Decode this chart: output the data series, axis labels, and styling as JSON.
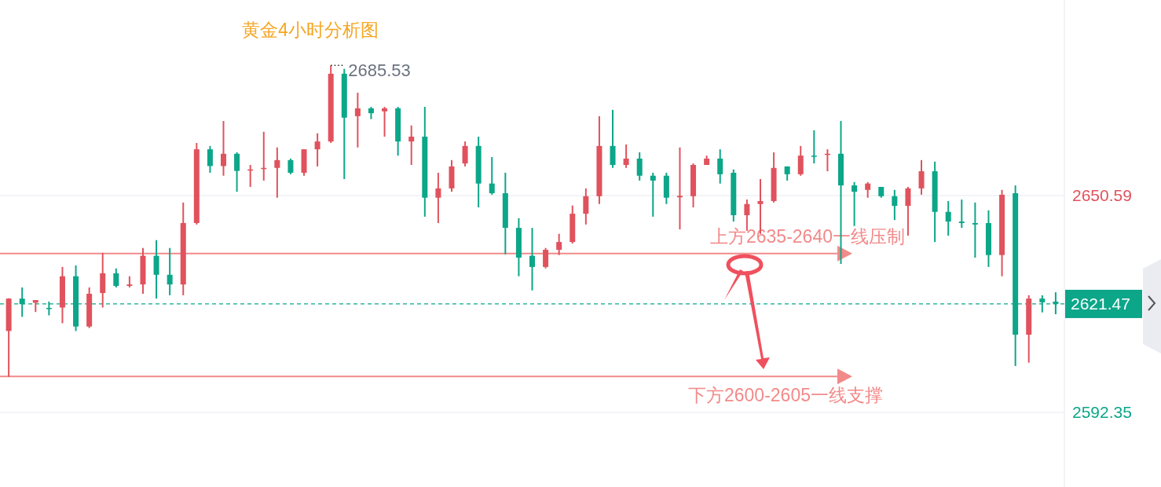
{
  "chart_data": {
    "type": "candlestick",
    "title": "黄金4小时分析图",
    "categories": [
      null,
      null,
      null,
      null,
      null,
      null,
      null,
      null,
      null,
      null,
      null,
      null,
      null,
      null,
      null,
      null,
      null,
      null,
      null,
      null,
      null,
      null,
      null,
      null,
      null,
      null,
      null,
      null,
      null,
      null,
      null,
      null,
      null,
      null,
      null,
      null,
      null,
      null,
      null,
      null,
      null,
      null,
      null,
      null,
      null,
      null,
      null,
      null,
      null,
      null,
      null,
      null,
      null,
      null,
      null,
      null,
      null,
      null,
      null,
      null,
      null,
      null,
      null,
      null,
      null,
      null,
      null,
      null,
      null,
      null,
      null,
      null,
      null,
      null,
      null,
      null,
      null,
      null,
      null
    ],
    "ohlc": [
      [
        2614.2,
        2623.0,
        2601.9,
        2622.9
      ],
      [
        2622.9,
        2625.9,
        2618.0,
        2621.4
      ],
      [
        2621.8,
        2622.5,
        2619.3,
        2622.5
      ],
      [
        2620.4,
        2622.1,
        2618.4,
        2620.1
      ],
      [
        2620.5,
        2631.4,
        2616.3,
        2628.9
      ],
      [
        2628.9,
        2631.8,
        2614.2,
        2615.4
      ],
      [
        2615.4,
        2625.9,
        2615.0,
        2624.2
      ],
      [
        2624.4,
        2635.2,
        2620.5,
        2629.7
      ],
      [
        2629.7,
        2631.0,
        2625.9,
        2626.3
      ],
      [
        2626.3,
        2628.9,
        2625.9,
        2626.7
      ],
      [
        2626.7,
        2636.5,
        2624.2,
        2634.4
      ],
      [
        2634.4,
        2638.6,
        2622.9,
        2629.3
      ],
      [
        2629.3,
        2636.5,
        2623.8,
        2626.7
      ],
      [
        2626.7,
        2648.7,
        2623.8,
        2643.2
      ],
      [
        2643.2,
        2664.7,
        2642.8,
        2663.0
      ],
      [
        2663.0,
        2663.9,
        2656.7,
        2658.5
      ],
      [
        2658.5,
        2670.6,
        2655.9,
        2661.8
      ],
      [
        2661.8,
        2662.2,
        2651.6,
        2657.2
      ],
      [
        2657.3,
        2658.8,
        2652.9,
        2657.6
      ],
      [
        2657.7,
        2667.7,
        2654.6,
        2658.0
      ],
      [
        2658.0,
        2663.5,
        2650.0,
        2660.1
      ],
      [
        2660.1,
        2660.5,
        2656.3,
        2656.7
      ],
      [
        2656.7,
        2663.0,
        2655.9,
        2663.0
      ],
      [
        2663.0,
        2667.3,
        2658.4,
        2665.1
      ],
      [
        2665.1,
        2685.53,
        2664.7,
        2683.3
      ],
      [
        2683.3,
        2684.6,
        2655.0,
        2671.5
      ],
      [
        2671.9,
        2678.2,
        2663.5,
        2674.0
      ],
      [
        2674.0,
        2674.4,
        2671.1,
        2672.7
      ],
      [
        2673.2,
        2674.4,
        2666.4,
        2674.0
      ],
      [
        2674.0,
        2674.4,
        2661.3,
        2665.1
      ],
      [
        2665.1,
        2669.4,
        2658.8,
        2666.4
      ],
      [
        2666.4,
        2674.4,
        2644.9,
        2650.0
      ],
      [
        2650.0,
        2656.7,
        2643.2,
        2652.5
      ],
      [
        2652.5,
        2660.1,
        2651.6,
        2658.4
      ],
      [
        2659.2,
        2665.1,
        2658.4,
        2663.9
      ],
      [
        2663.9,
        2666.4,
        2647.4,
        2653.8
      ],
      [
        2653.8,
        2660.9,
        2650.8,
        2651.2
      ],
      [
        2651.2,
        2656.7,
        2634.8,
        2641.9
      ],
      [
        2641.9,
        2644.5,
        2628.9,
        2633.9
      ],
      [
        2634.4,
        2641.9,
        2625.1,
        2631.4
      ],
      [
        2631.4,
        2636.5,
        2631.0,
        2636.0
      ],
      [
        2636.0,
        2640.3,
        2634.6,
        2638.1
      ],
      [
        2638.1,
        2647.9,
        2637.7,
        2645.7
      ],
      [
        2645.7,
        2652.5,
        2642.8,
        2650.4
      ],
      [
        2650.4,
        2671.9,
        2648.3,
        2663.9
      ],
      [
        2663.9,
        2673.6,
        2658.0,
        2658.8
      ],
      [
        2658.8,
        2664.3,
        2658.0,
        2660.5
      ],
      [
        2660.5,
        2662.2,
        2654.6,
        2655.9
      ],
      [
        2655.9,
        2656.7,
        2644.9,
        2654.6
      ],
      [
        2655.9,
        2656.7,
        2648.3,
        2650.0
      ],
      [
        2650.1,
        2663.5,
        2641.5,
        2650.5
      ],
      [
        2650.4,
        2659.2,
        2647.4,
        2658.8
      ],
      [
        2658.8,
        2661.3,
        2658.8,
        2660.5
      ],
      [
        2660.5,
        2663.0,
        2653.8,
        2656.3
      ],
      [
        2656.7,
        2657.6,
        2643.6,
        2645.3
      ],
      [
        2645.3,
        2649.5,
        2641.1,
        2648.3
      ],
      [
        2648.3,
        2655.0,
        2640.3,
        2649.1
      ],
      [
        2649.1,
        2662.2,
        2648.7,
        2658.0
      ],
      [
        2658.4,
        2658.4,
        2654.6,
        2656.3
      ],
      [
        2656.3,
        2663.9,
        2655.9,
        2661.3
      ],
      [
        2661.3,
        2668.1,
        2659.2,
        2661.0
      ],
      [
        2661.5,
        2663.0,
        2657.1,
        2661.8
      ],
      [
        2661.8,
        2670.6,
        2632.2,
        2653.3
      ],
      [
        2653.3,
        2654.2,
        2642.4,
        2651.6
      ],
      [
        2652.1,
        2654.2,
        2650.0,
        2653.8
      ],
      [
        2652.9,
        2652.9,
        2650.0,
        2650.4
      ],
      [
        2650.4,
        2652.1,
        2644.0,
        2647.8
      ],
      [
        2647.8,
        2652.9,
        2639.8,
        2652.5
      ],
      [
        2652.5,
        2660.1,
        2650.8,
        2657.1
      ],
      [
        2657.1,
        2659.7,
        2638.1,
        2646.2
      ],
      [
        2646.2,
        2649.1,
        2639.8,
        2643.6
      ],
      [
        2643.6,
        2649.5,
        2641.9,
        2643.2
      ],
      [
        2643.2,
        2648.7,
        2633.9,
        2642.8
      ],
      [
        2643.2,
        2646.6,
        2631.4,
        2634.6
      ],
      [
        2634.6,
        2652.1,
        2628.9,
        2650.8
      ],
      [
        2651.2,
        2653.3,
        2604.8,
        2613.2
      ],
      [
        2613.2,
        2623.8,
        2605.7,
        2622.9
      ],
      [
        2622.9,
        2623.8,
        2619.2,
        2621.9
      ],
      [
        2622.1,
        2624.6,
        2618.7,
        2621.47
      ]
    ],
    "colors": [
      "#e0525d",
      "#0ca689",
      "#e0525d",
      "#0ca689",
      "#e0525d",
      "#0ca689",
      "#e0525d",
      "#e0525d",
      "#0ca689",
      "#e0525d",
      "#e0525d",
      "#0ca689",
      "#0ca689",
      "#e0525d",
      "#e0525d",
      "#0ca689",
      "#e0525d",
      "#0ca689",
      "#e0525d",
      "#e0525d",
      "#e0525d",
      "#0ca689",
      "#e0525d",
      "#e0525d",
      "#e0525d",
      "#0ca689",
      "#e0525d",
      "#0ca689",
      "#e0525d",
      "#0ca689",
      "#e0525d",
      "#0ca689",
      "#e0525d",
      "#e0525d",
      "#e0525d",
      "#0ca689",
      "#0ca689",
      "#0ca689",
      "#0ca689",
      "#0ca689",
      "#e0525d",
      "#e0525d",
      "#e0525d",
      "#e0525d",
      "#e0525d",
      "#0ca689",
      "#e0525d",
      "#0ca689",
      "#0ca689",
      "#0ca689",
      "#e0525d",
      "#e0525d",
      "#e0525d",
      "#0ca689",
      "#0ca689",
      "#e0525d",
      "#e0525d",
      "#e0525d",
      "#0ca689",
      "#e0525d",
      "#0ca689",
      "#e0525d",
      "#0ca689",
      "#0ca689",
      "#e0525d",
      "#0ca689",
      "#0ca689",
      "#e0525d",
      "#e0525d",
      "#0ca689",
      "#0ca689",
      "#0ca689",
      "#0ca689",
      "#0ca689",
      "#e0525d",
      "#0ca689",
      "#e0525d",
      "#0ca689",
      "#0ca689"
    ],
    "ylim": [
      2572.3,
      2703.1
    ],
    "yticks": [
      2650.59,
      2592.35
    ],
    "grid": "y",
    "ref_lines": [
      {
        "axis": "y",
        "value": 2635.0,
        "label": "上方2635-2640一线压制",
        "color": "#f28a8a"
      },
      {
        "axis": "y",
        "value": 2602.0,
        "label": "下方2600-2605一线支撑",
        "color": "#f28a8a"
      },
      {
        "axis": "y",
        "value": 2621.47,
        "label": "2621.47",
        "color": "#0ca689",
        "line_style": "dashed"
      }
    ],
    "annotations": [
      "2685.53"
    ]
  }
}
